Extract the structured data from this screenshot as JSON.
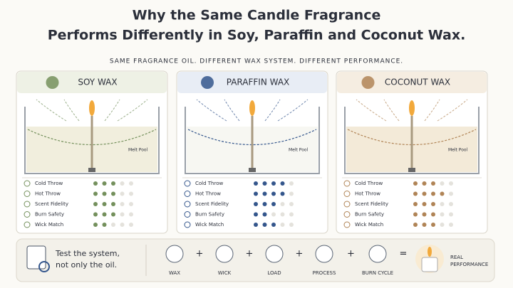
{
  "header": {
    "title_lines": [
      "Why the Same Candle Fragrance",
      "Performs Differently in Soy, Paraffin and Coconut Wax."
    ],
    "subtitle": "SAME FRAGRANCE OIL. DIFFERENT WAX SYSTEM. DIFFERENT PERFORMANCE."
  },
  "criteria": [
    "Cold Throw",
    "Hot Throw",
    "Scent Fidelity",
    "Burn Safety",
    "Wick Match"
  ],
  "panels": [
    {
      "name": "SOY WAX",
      "label": "Melt Pool",
      "color": "#74905c",
      "ratings": [
        3,
        3,
        3,
        3,
        2
      ]
    },
    {
      "name": "PARAFFIN WAX",
      "label": "Melt Pool",
      "color": "#34568c",
      "ratings": [
        4,
        4,
        3,
        2,
        3
      ]
    },
    {
      "name": "COCONUT WAX",
      "label": "Melt Pool",
      "color": "#b08456",
      "ratings": [
        3,
        4,
        3,
        3,
        3
      ]
    }
  ],
  "footer": {
    "message_lines": [
      "Test the system,",
      "not only the oil."
    ],
    "steps": [
      "WAX",
      "WICK",
      "LOAD",
      "PROCESS",
      "BURN CYCLE"
    ],
    "result_lines": [
      "REAL",
      "PERFORMANCE"
    ]
  }
}
